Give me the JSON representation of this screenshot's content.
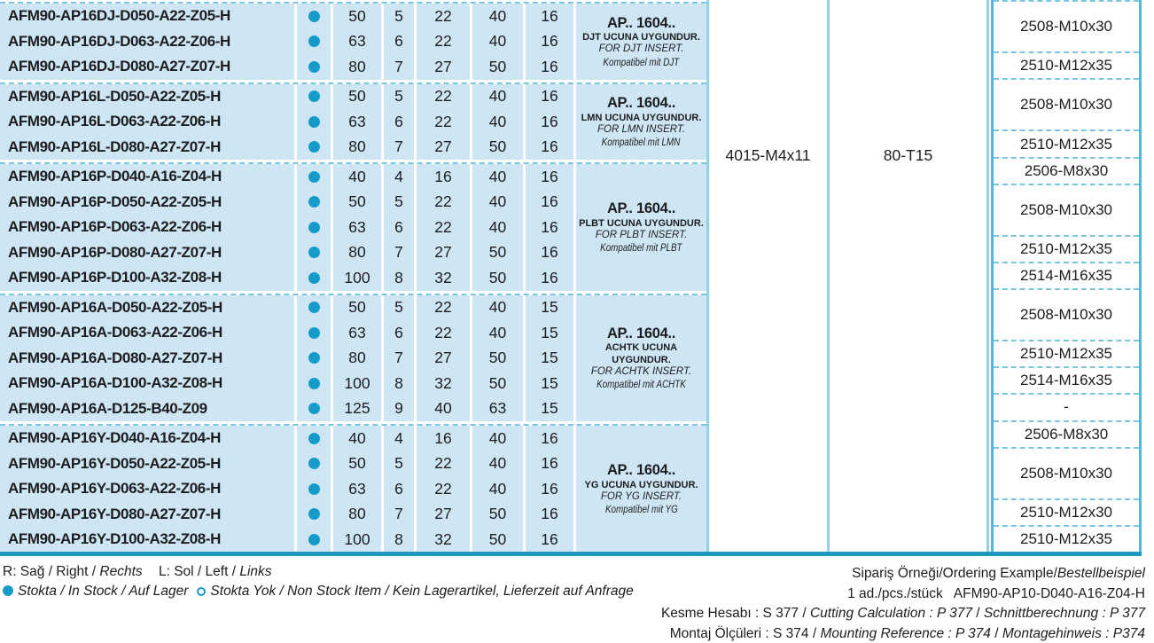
{
  "colors": {
    "row_blue": "#cee6f4",
    "accent_teal": "#169bc8",
    "border_light": "#93d2e6",
    "border_dark": "#55b8d8",
    "bottom_rule": "#1f97bf"
  },
  "table": {
    "mounting_screw": "4015-M4x11",
    "wrench": "80-T15",
    "groups": [
      {
        "insert_note": {
          "series": "AP.. 1604..",
          "tr": "DJT UCUNA UYGUNDUR.",
          "en": "FOR DJT INSERT.",
          "de": "Kompatibel mit DJT"
        },
        "rows": [
          {
            "code": "AFM90-AP16DJ-D050-A22-Z05-H",
            "stock": "in-stock",
            "values": [
              "50",
              "5",
              "22",
              "40",
              "16"
            ]
          },
          {
            "code": "AFM90-AP16DJ-D063-A22-Z06-H",
            "stock": "in-stock",
            "values": [
              "63",
              "6",
              "22",
              "40",
              "16"
            ]
          },
          {
            "code": "AFM90-AP16DJ-D080-A27-Z07-H",
            "stock": "in-stock",
            "values": [
              "80",
              "7",
              "27",
              "50",
              "16"
            ]
          }
        ]
      },
      {
        "insert_note": {
          "series": "AP.. 1604..",
          "tr": "LMN UCUNA UYGUNDUR.",
          "en": "FOR LMN INSERT.",
          "de": "Kompatibel mit LMN"
        },
        "rows": [
          {
            "code": "AFM90-AP16L-D050-A22-Z05-H",
            "stock": "in-stock",
            "values": [
              "50",
              "5",
              "22",
              "40",
              "16"
            ]
          },
          {
            "code": "AFM90-AP16L-D063-A22-Z06-H",
            "stock": "in-stock",
            "values": [
              "63",
              "6",
              "22",
              "40",
              "16"
            ]
          },
          {
            "code": "AFM90-AP16L-D080-A27-Z07-H",
            "stock": "in-stock",
            "values": [
              "80",
              "7",
              "27",
              "50",
              "16"
            ]
          }
        ]
      },
      {
        "insert_note": {
          "series": "AP.. 1604..",
          "tr": "PLBT UCUNA UYGUNDUR.",
          "en": "FOR PLBT INSERT.",
          "de": "Kompatibel mit PLBT"
        },
        "rows": [
          {
            "code": "AFM90-AP16P-D040-A16-Z04-H",
            "stock": "in-stock",
            "values": [
              "40",
              "4",
              "16",
              "40",
              "16"
            ]
          },
          {
            "code": "AFM90-AP16P-D050-A22-Z05-H",
            "stock": "in-stock",
            "values": [
              "50",
              "5",
              "22",
              "40",
              "16"
            ]
          },
          {
            "code": "AFM90-AP16P-D063-A22-Z06-H",
            "stock": "in-stock",
            "values": [
              "63",
              "6",
              "22",
              "40",
              "16"
            ]
          },
          {
            "code": "AFM90-AP16P-D080-A27-Z07-H",
            "stock": "in-stock",
            "values": [
              "80",
              "7",
              "27",
              "50",
              "16"
            ]
          },
          {
            "code": "AFM90-AP16P-D100-A32-Z08-H",
            "stock": "in-stock",
            "values": [
              "100",
              "8",
              "32",
              "50",
              "16"
            ]
          }
        ]
      },
      {
        "insert_note": {
          "series": "AP.. 1604..",
          "tr": "ACHTK UCUNA UYGUNDUR.",
          "en": "FOR ACHTK INSERT.",
          "de": "Kompatibel mit ACHTK"
        },
        "rows": [
          {
            "code": "AFM90-AP16A-D050-A22-Z05-H",
            "stock": "in-stock",
            "values": [
              "50",
              "5",
              "22",
              "40",
              "15"
            ]
          },
          {
            "code": "AFM90-AP16A-D063-A22-Z06-H",
            "stock": "in-stock",
            "values": [
              "63",
              "6",
              "22",
              "40",
              "15"
            ]
          },
          {
            "code": "AFM90-AP16A-D080-A27-Z07-H",
            "stock": "in-stock",
            "values": [
              "80",
              "7",
              "27",
              "50",
              "15"
            ]
          },
          {
            "code": "AFM90-AP16A-D100-A32-Z08-H",
            "stock": "in-stock",
            "values": [
              "100",
              "8",
              "32",
              "50",
              "15"
            ]
          },
          {
            "code": "AFM90-AP16A-D125-B40-Z09",
            "stock": "in-stock",
            "values": [
              "125",
              "9",
              "40",
              "63",
              "15"
            ]
          }
        ]
      },
      {
        "insert_note": {
          "series": "AP.. 1604..",
          "tr": "YG UCUNA UYGUNDUR.",
          "en": "FOR YG INSERT.",
          "de": "Kompatibel mit YG"
        },
        "rows": [
          {
            "code": "AFM90-AP16Y-D040-A16-Z04-H",
            "stock": "in-stock",
            "values": [
              "40",
              "4",
              "16",
              "40",
              "16"
            ]
          },
          {
            "code": "AFM90-AP16Y-D050-A22-Z05-H",
            "stock": "in-stock",
            "values": [
              "50",
              "5",
              "22",
              "40",
              "16"
            ]
          },
          {
            "code": "AFM90-AP16Y-D063-A22-Z06-H",
            "stock": "in-stock",
            "values": [
              "63",
              "6",
              "22",
              "40",
              "16"
            ]
          },
          {
            "code": "AFM90-AP16Y-D080-A27-Z07-H",
            "stock": "in-stock",
            "values": [
              "80",
              "7",
              "27",
              "50",
              "16"
            ]
          },
          {
            "code": "AFM90-AP16Y-D100-A32-Z08-H",
            "stock": "in-stock",
            "values": [
              "100",
              "8",
              "32",
              "50",
              "16"
            ]
          }
        ]
      }
    ],
    "clamp_screws": [
      {
        "label": "2508-M10x30",
        "span": 2
      },
      {
        "label": "2510-M12x35",
        "span": 1
      },
      {
        "label": "2508-M10x30",
        "span": 2
      },
      {
        "label": "2510-M12x35",
        "span": 1
      },
      {
        "label": "2506-M8x30",
        "span": 1
      },
      {
        "label": "2508-M10x30",
        "span": 2
      },
      {
        "label": "2510-M12x35",
        "span": 1
      },
      {
        "label": "2514-M16x35",
        "span": 1
      },
      {
        "label": "2508-M10x30",
        "span": 2
      },
      {
        "label": "2510-M12x35",
        "span": 1
      },
      {
        "label": "2514-M16x35",
        "span": 1
      },
      {
        "label": "-",
        "span": 1
      },
      {
        "label": "2506-M8x30",
        "span": 1
      },
      {
        "label": "2508-M10x30",
        "span": 2
      },
      {
        "label": "2510-M12x30",
        "span": 1
      },
      {
        "label": "2510-M12x35",
        "span": 1
      }
    ]
  },
  "footer": {
    "rl_legend": {
      "p1": "R: Sağ / Right /",
      "p2": "Rechts",
      "p3": "L: Sol / Left /",
      "p4": "Links"
    },
    "stock_legend": {
      "in": "Stokta / In Stock / Auf Lager",
      "out": "Stokta Yok / Non Stock Item / Kein Lagerartikel, Lieferzeit auf Anfrage"
    },
    "ordering": {
      "title_p1": "Sipariş Örneği/Ordering Example/",
      "title_p2": "Bestellbeispiel",
      "qty": "1 ad./pcs./stück",
      "example_code": "AFM90-AP10-D040-A16-Z04-H",
      "cutting_p1": "Kesme Hesabı : S 377 /",
      "cutting_p2": "Cutting Calculation : P 377",
      "cutting_p3": "/",
      "cutting_p4": "Schnittberechnung : P 377",
      "mounting_p1": "Montaj Ölçüleri :  S 374 /",
      "mounting_p2": "Mounting Reference : P 374",
      "mounting_p3": "/",
      "mounting_p4": "Montagehinweis : P374"
    }
  }
}
